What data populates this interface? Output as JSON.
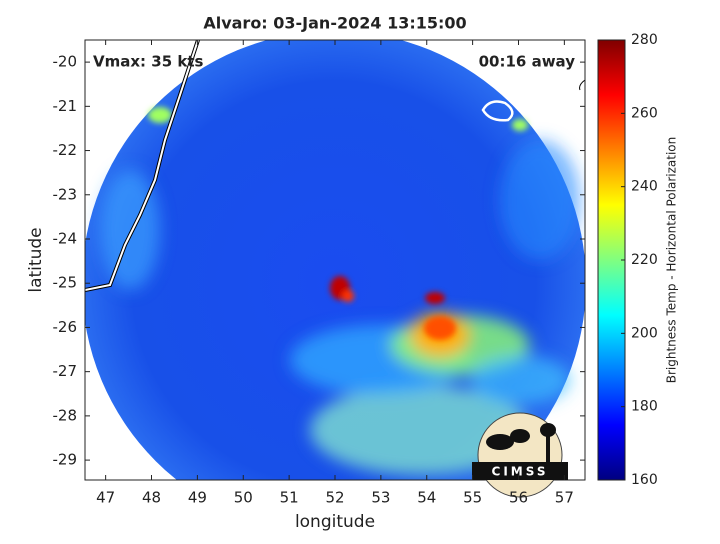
{
  "chart_data": {
    "type": "image",
    "title": "Alvaro: 03-Jan-2024 13:15:00",
    "annotations": [
      "Vmax: 35 kts",
      "00:16 away"
    ],
    "xlabel": "longitude",
    "ylabel": "latitude",
    "xlim": [
      46.55,
      57.45
    ],
    "xticks": [
      47,
      48,
      49,
      50,
      51,
      52,
      53,
      54,
      55,
      56,
      57
    ],
    "ylim": [
      -29.45,
      -19.5
    ],
    "yticks": [
      -20,
      -21,
      -22,
      -23,
      -24,
      -25,
      -26,
      -27,
      -28,
      -29
    ],
    "colorbar": {
      "label": "Brightness Temp - Horizontal Polarization",
      "lim": [
        160,
        280
      ],
      "ticks": [
        160,
        180,
        200,
        220,
        240,
        260,
        280
      ],
      "colormap": [
        "#800000",
        "#ff0000",
        "#ff8000",
        "#ffff00",
        "#80ff80",
        "#00ffff",
        "#0080ff",
        "#0000ff",
        "#000080"
      ]
    },
    "logo": "CIMSS"
  }
}
